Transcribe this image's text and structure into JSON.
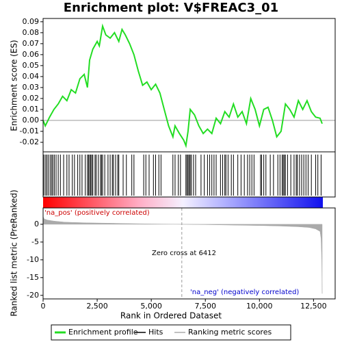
{
  "title": "Enrichment plot: V$FREAC3_01",
  "chart_data": [
    {
      "type": "line",
      "ylabel": "Enrichment score (ES)",
      "xlim": [
        0,
        13500
      ],
      "ylim": [
        -0.0287,
        0.093
      ],
      "yticks": [
        -0.02,
        -0.01,
        {
          "value": 0,
          "label": "0.00"
        },
        0.01,
        0.02,
        0.03,
        0.04,
        0.05,
        0.06,
        0.07,
        0.08,
        0.09
      ],
      "x": [
        0,
        100,
        300,
        500,
        700,
        900,
        1100,
        1300,
        1500,
        1700,
        1900,
        2050,
        2150,
        2300,
        2500,
        2600,
        2750,
        2900,
        3100,
        3300,
        3500,
        3650,
        3800,
        4000,
        4200,
        4400,
        4600,
        4800,
        5000,
        5200,
        5400,
        5600,
        5800,
        6000,
        6100,
        6300,
        6500,
        6600,
        6700,
        6800,
        7000,
        7200,
        7400,
        7600,
        7800,
        8000,
        8200,
        8400,
        8600,
        8800,
        9000,
        9200,
        9400,
        9600,
        9800,
        10000,
        10200,
        10400,
        10600,
        10800,
        11000,
        11200,
        11400,
        11600,
        11800,
        12000,
        12200,
        12400,
        12600,
        12800,
        12900
      ],
      "series": [
        {
          "name": "Enrichment profile",
          "color": "#22dd22",
          "values": [
            0,
            -0.005,
            0.003,
            0.01,
            0.015,
            0.022,
            0.018,
            0.028,
            0.025,
            0.038,
            0.042,
            0.03,
            0.055,
            0.065,
            0.072,
            0.068,
            0.086,
            0.078,
            0.075,
            0.08,
            0.072,
            0.083,
            0.078,
            0.07,
            0.06,
            0.045,
            0.032,
            0.035,
            0.028,
            0.033,
            0.025,
            0.01,
            -0.005,
            -0.015,
            -0.005,
            -0.012,
            -0.018,
            -0.023,
            -0.01,
            0.01,
            0.005,
            -0.005,
            -0.012,
            -0.008,
            -0.012,
            0.002,
            -0.003,
            0.008,
            0.003,
            0.015,
            0.003,
            0.008,
            -0.003,
            0.02,
            0.01,
            -0.005,
            0.01,
            0.012,
            0,
            -0.015,
            -0.01,
            0.015,
            0.01,
            0.003,
            0.018,
            0.01,
            0.018,
            0.008,
            0.003,
            0.002,
            -0.003
          ]
        }
      ]
    },
    {
      "type": "rug",
      "xlim": [
        0,
        13500
      ],
      "series": [
        {
          "name": "Hits",
          "color": "#000000",
          "x": [
            40,
            120,
            180,
            250,
            330,
            400,
            450,
            520,
            600,
            700,
            800,
            950,
            1100,
            1200,
            1350,
            1450,
            1600,
            1700,
            1800,
            1950,
            2050,
            2100,
            2150,
            2200,
            2250,
            2300,
            2400,
            2450,
            2550,
            2650,
            2700,
            2750,
            2850,
            3000,
            3100,
            3200,
            3250,
            3350,
            3450,
            3500,
            3700,
            3850,
            4100,
            4200,
            4650,
            4750,
            4900,
            5100,
            5200,
            5350,
            5450,
            6000,
            6100,
            6250,
            6350,
            6600,
            6650,
            6700,
            6750,
            6800,
            6850,
            6950,
            7050,
            7300,
            7450,
            7600,
            7700,
            7800,
            7900,
            8000,
            8200,
            8300,
            8400,
            8450,
            8550,
            8700,
            8800,
            9000,
            9150,
            9300,
            9450,
            9550,
            9650,
            9750,
            10050,
            10100,
            10200,
            10300,
            10500,
            10650,
            10850,
            10950,
            11050,
            11100,
            11150,
            11200,
            11300,
            11450,
            11600,
            11700,
            11750,
            11850,
            11950,
            12050,
            12150,
            12250,
            12400,
            12600,
            12700,
            12850
          ]
        }
      ]
    },
    {
      "type": "area",
      "ylabel": "Ranked list metric (PreRanked)",
      "xlabel": "Rank in Ordered Dataset",
      "xlim": [
        0,
        13500
      ],
      "ylim": [
        -21,
        4.6
      ],
      "xticks": [
        0,
        {
          "value": 2500,
          "label": "2,500"
        },
        {
          "value": 5000,
          "label": "5,000"
        },
        {
          "value": 7500,
          "label": "7,500"
        },
        {
          "value": 10000,
          "label": "10,000"
        },
        {
          "value": 12500,
          "label": "12,500"
        }
      ],
      "yticks": [
        0,
        -5,
        -10,
        -15,
        -20
      ],
      "x": [
        0,
        50,
        200,
        500,
        1000,
        2000,
        3000,
        4000,
        5000,
        6412,
        7500,
        9000,
        10000,
        11000,
        11800,
        12300,
        12600,
        12800,
        12850,
        12880,
        12900
      ],
      "series": [
        {
          "name": "Ranking metric scores",
          "color": "#aaaaaa",
          "values": [
            2.2,
            1.5,
            1.2,
            0.9,
            0.6,
            0.4,
            0.3,
            0.2,
            0.1,
            0,
            -0.1,
            -0.25,
            -0.35,
            -0.5,
            -0.7,
            -0.9,
            -1.3,
            -2,
            -4,
            -10,
            -19.5
          ]
        }
      ],
      "zero_cross": 6412,
      "annotations": [
        "'na_pos' (positively correlated)",
        "'na_neg' (negatively correlated)",
        "Zero cross at 6412"
      ]
    }
  ]
}
